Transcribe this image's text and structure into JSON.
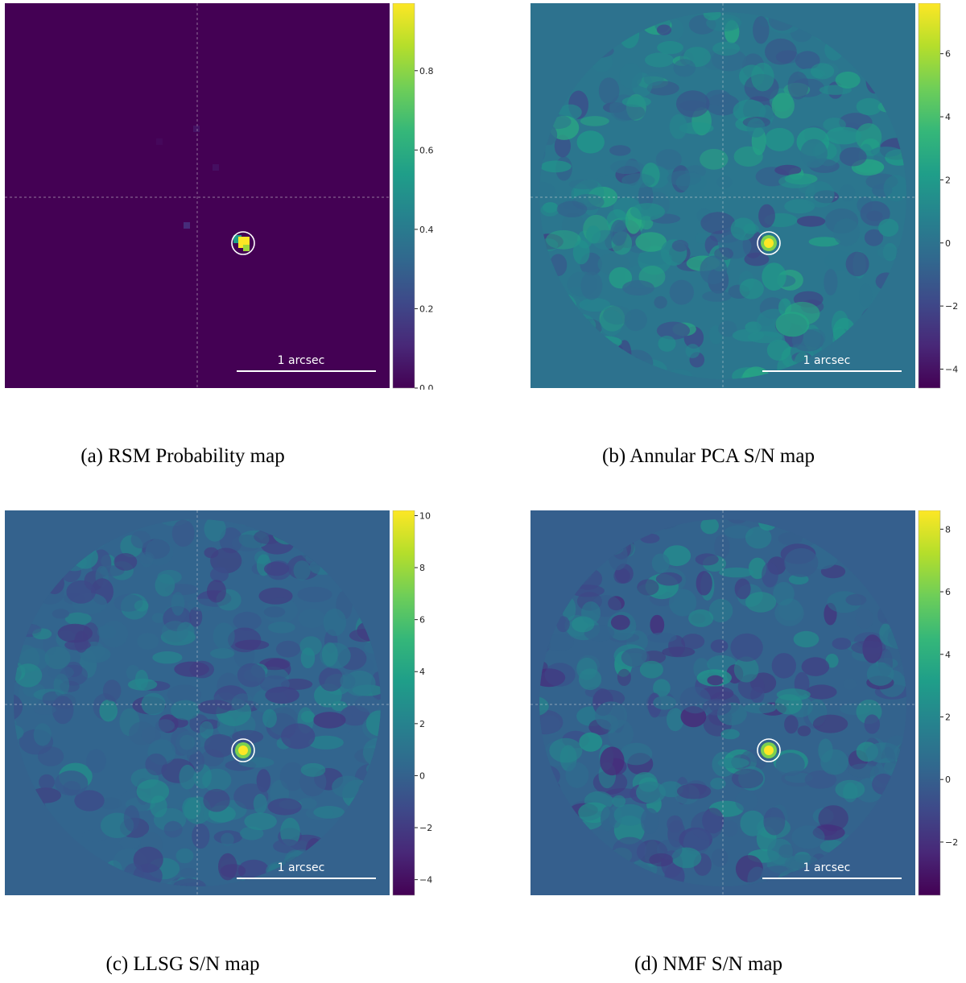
{
  "figure": {
    "panels": [
      {
        "caption": "(a) RSM Probability map",
        "type": "probability",
        "scale_bar_label": "1 arcsec",
        "colorbar": {
          "min": 0.0,
          "max": 0.97,
          "ticks": [
            0.0,
            0.2,
            0.4,
            0.6,
            0.8
          ],
          "tick_labels": [
            "0.0",
            "0.2",
            "0.4",
            "0.6",
            "0.8"
          ]
        },
        "detection_marker": "circle"
      },
      {
        "caption": "(b) Annular PCA S/N map",
        "type": "snr",
        "scale_bar_label": "1 arcsec",
        "colorbar": {
          "min": -4.6,
          "max": 7.6,
          "ticks": [
            -4,
            -2,
            0,
            2,
            4,
            6
          ],
          "tick_labels": [
            "−4",
            "−2",
            "0",
            "2",
            "4",
            "6"
          ]
        },
        "detection_marker": "circle"
      },
      {
        "caption": "(c) LLSG S/N map",
        "type": "snr",
        "scale_bar_label": "1 arcsec",
        "colorbar": {
          "min": -4.6,
          "max": 10.2,
          "ticks": [
            -4,
            -2,
            0,
            2,
            4,
            6,
            8,
            10
          ],
          "tick_labels": [
            "−4",
            "−2",
            "0",
            "2",
            "4",
            "6",
            "8",
            "10"
          ]
        },
        "detection_marker": "circle"
      },
      {
        "caption": "(d) NMF S/N map",
        "type": "snr",
        "scale_bar_label": "1 arcsec",
        "colorbar": {
          "min": -3.7,
          "max": 8.6,
          "ticks": [
            -2,
            0,
            2,
            4,
            6,
            8
          ],
          "tick_labels": [
            "−2",
            "0",
            "2",
            "4",
            "6",
            "8"
          ]
        },
        "detection_marker": "circle"
      }
    ],
    "colormap": "viridis",
    "colors": {
      "viridis_low": "#440154",
      "viridis_mid": "#21918c",
      "viridis_high": "#fde725",
      "background_snr": "#31688e",
      "marker": "#ffffff"
    }
  }
}
